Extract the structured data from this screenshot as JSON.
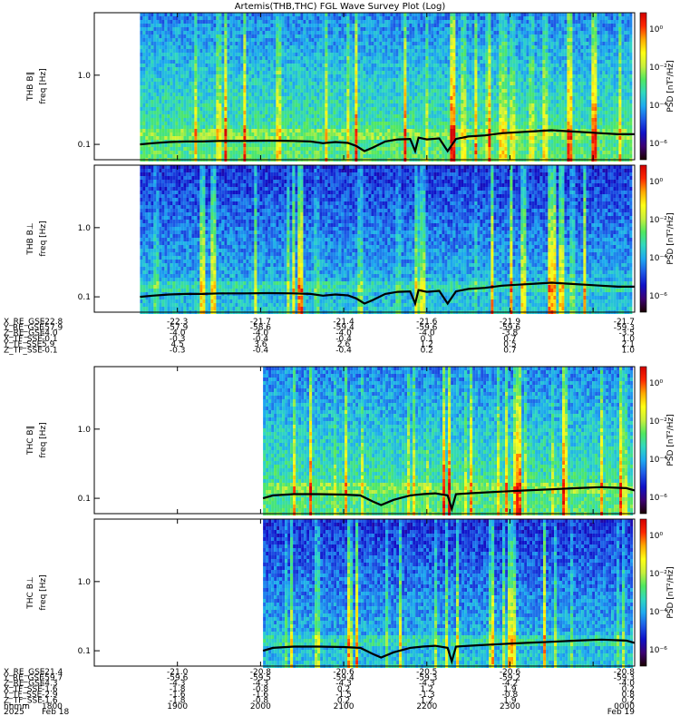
{
  "title": "Artemis(THB,THC) FGL Wave Survey Plot (Log)",
  "colors": {
    "background": "#ffffff",
    "trace": "#000000",
    "colorbar": [
      "#1a0000",
      "#3c0073",
      "#1010c8",
      "#1e5ae6",
      "#1eaaf0",
      "#30d8c0",
      "#50e860",
      "#c8f03c",
      "#ffff14",
      "#ffaa00",
      "#ff2800",
      "#d20000"
    ]
  },
  "chart_data": [
    {
      "type": "heatmap",
      "panel_id": "thb_b_par",
      "ylabel_probe": "THB B∥",
      "ylabel_unit": "freq [Hz]",
      "yscale": "log",
      "ylim": [
        0.06,
        8
      ],
      "yticks": [
        "1.0",
        "0.1"
      ],
      "data_start_hour": 17.55,
      "colorbar_label": "PSD [nT²/Hz]",
      "colorbar_ticks": [
        "10⁰",
        "10⁻²",
        "10⁻⁴",
        "10⁻⁶"
      ],
      "trace": [
        [
          17.55,
          0.1
        ],
        [
          17.7,
          0.104
        ],
        [
          17.9,
          0.108
        ],
        [
          18.1,
          0.11
        ],
        [
          18.3,
          0.11
        ],
        [
          18.5,
          0.112
        ],
        [
          18.8,
          0.112
        ],
        [
          19.1,
          0.113
        ],
        [
          19.4,
          0.112
        ],
        [
          19.6,
          0.11
        ],
        [
          19.75,
          0.104
        ],
        [
          19.9,
          0.108
        ],
        [
          20.05,
          0.105
        ],
        [
          20.15,
          0.095
        ],
        [
          20.25,
          0.08
        ],
        [
          20.35,
          0.09
        ],
        [
          20.5,
          0.11
        ],
        [
          20.65,
          0.118
        ],
        [
          20.8,
          0.12
        ],
        [
          20.86,
          0.08
        ],
        [
          20.9,
          0.125
        ],
        [
          21.0,
          0.118
        ],
        [
          21.15,
          0.122
        ],
        [
          21.25,
          0.08
        ],
        [
          21.35,
          0.12
        ],
        [
          21.5,
          0.13
        ],
        [
          21.7,
          0.135
        ],
        [
          21.9,
          0.145
        ],
        [
          22.1,
          0.15
        ],
        [
          22.3,
          0.155
        ],
        [
          22.5,
          0.16
        ],
        [
          22.7,
          0.155
        ],
        [
          22.9,
          0.15
        ],
        [
          23.1,
          0.145
        ],
        [
          23.3,
          0.14
        ],
        [
          23.5,
          0.14
        ]
      ]
    },
    {
      "type": "heatmap",
      "panel_id": "thb_b_perp",
      "ylabel_probe": "THB B⊥",
      "ylabel_unit": "freq [Hz]",
      "yscale": "log",
      "ylim": [
        0.06,
        8
      ],
      "yticks": [
        "1.0",
        "0.1"
      ],
      "data_start_hour": 17.55,
      "colorbar_label": "PSD [nT²/Hz]",
      "colorbar_ticks": [
        "10⁰",
        "10⁻²",
        "10⁻⁴",
        "10⁻⁶"
      ],
      "trace": [
        [
          17.55,
          0.1
        ],
        [
          17.7,
          0.104
        ],
        [
          17.9,
          0.108
        ],
        [
          18.1,
          0.11
        ],
        [
          18.3,
          0.11
        ],
        [
          18.5,
          0.112
        ],
        [
          18.8,
          0.112
        ],
        [
          19.1,
          0.113
        ],
        [
          19.4,
          0.112
        ],
        [
          19.6,
          0.11
        ],
        [
          19.75,
          0.104
        ],
        [
          19.9,
          0.108
        ],
        [
          20.05,
          0.105
        ],
        [
          20.15,
          0.095
        ],
        [
          20.25,
          0.08
        ],
        [
          20.35,
          0.09
        ],
        [
          20.5,
          0.11
        ],
        [
          20.65,
          0.118
        ],
        [
          20.8,
          0.12
        ],
        [
          20.86,
          0.08
        ],
        [
          20.9,
          0.125
        ],
        [
          21.0,
          0.118
        ],
        [
          21.15,
          0.122
        ],
        [
          21.25,
          0.08
        ],
        [
          21.35,
          0.12
        ],
        [
          21.5,
          0.13
        ],
        [
          21.7,
          0.135
        ],
        [
          21.9,
          0.145
        ],
        [
          22.1,
          0.15
        ],
        [
          22.3,
          0.155
        ],
        [
          22.5,
          0.16
        ],
        [
          22.7,
          0.155
        ],
        [
          22.9,
          0.15
        ],
        [
          23.1,
          0.145
        ],
        [
          23.3,
          0.14
        ],
        [
          23.5,
          0.14
        ]
      ]
    },
    {
      "type": "heatmap",
      "panel_id": "thc_b_par",
      "ylabel_probe": "THC B∥",
      "ylabel_unit": "freq [Hz]",
      "yscale": "log",
      "ylim": [
        0.06,
        8
      ],
      "yticks": [
        "1.0",
        "0.1"
      ],
      "data_start_hour": 19.03,
      "colorbar_label": "PSD [nT²/Hz]",
      "colorbar_ticks": [
        "10⁰",
        "10⁻²",
        "10⁻⁴",
        "10⁻⁶"
      ],
      "trace": [
        [
          19.03,
          0.1
        ],
        [
          19.15,
          0.11
        ],
        [
          19.4,
          0.115
        ],
        [
          19.7,
          0.115
        ],
        [
          20.0,
          0.113
        ],
        [
          20.2,
          0.11
        ],
        [
          20.35,
          0.09
        ],
        [
          20.45,
          0.08
        ],
        [
          20.6,
          0.095
        ],
        [
          20.8,
          0.11
        ],
        [
          20.95,
          0.115
        ],
        [
          21.1,
          0.118
        ],
        [
          21.25,
          0.11
        ],
        [
          21.3,
          0.07
        ],
        [
          21.35,
          0.115
        ],
        [
          21.6,
          0.12
        ],
        [
          21.9,
          0.125
        ],
        [
          22.2,
          0.13
        ],
        [
          22.5,
          0.135
        ],
        [
          22.8,
          0.14
        ],
        [
          23.1,
          0.145
        ],
        [
          23.4,
          0.14
        ],
        [
          23.5,
          0.13
        ]
      ]
    },
    {
      "type": "heatmap",
      "panel_id": "thc_b_perp",
      "ylabel_probe": "THC B⊥",
      "ylabel_unit": "freq [Hz]",
      "yscale": "log",
      "ylim": [
        0.06,
        8
      ],
      "yticks": [
        "1.0",
        "0.1"
      ],
      "data_start_hour": 19.03,
      "colorbar_label": "PSD [nT²/Hz]",
      "colorbar_ticks": [
        "10⁰",
        "10⁻²",
        "10⁻⁴",
        "10⁻⁶"
      ],
      "trace": [
        [
          19.03,
          0.1
        ],
        [
          19.15,
          0.11
        ],
        [
          19.4,
          0.115
        ],
        [
          19.7,
          0.115
        ],
        [
          20.0,
          0.113
        ],
        [
          20.2,
          0.11
        ],
        [
          20.35,
          0.09
        ],
        [
          20.45,
          0.08
        ],
        [
          20.6,
          0.095
        ],
        [
          20.8,
          0.11
        ],
        [
          20.95,
          0.115
        ],
        [
          21.1,
          0.118
        ],
        [
          21.25,
          0.11
        ],
        [
          21.3,
          0.07
        ],
        [
          21.35,
          0.115
        ],
        [
          21.6,
          0.12
        ],
        [
          21.9,
          0.125
        ],
        [
          22.2,
          0.13
        ],
        [
          22.5,
          0.135
        ],
        [
          22.8,
          0.14
        ],
        [
          23.1,
          0.145
        ],
        [
          23.4,
          0.14
        ],
        [
          23.5,
          0.13
        ]
      ]
    }
  ],
  "thb_ephemeris": {
    "row_labels": [
      "X_RE_GSE",
      "Y_RE_GSE",
      "Z_RE_GSE",
      "X_TF_SSE",
      "Y_TF_SSE",
      "Z_TF_SSE"
    ],
    "columns": [
      {
        "hour": 17.0,
        "values": [
          "-22.8",
          "-57.9",
          "-4.0",
          "-0.1",
          "5.9",
          "-0.1"
        ]
      },
      {
        "hour": 18.0,
        "values": [
          "-22.3",
          "-57.9",
          "-4.0",
          "-0.3",
          "4.5",
          "-0.3"
        ]
      },
      {
        "hour": 19.0,
        "values": [
          "-21.7",
          "-58.6",
          "-4.0",
          "-0.4",
          "3.6",
          "-0.4"
        ]
      },
      {
        "hour": 20.0,
        "values": [
          "-21.4",
          "-59.4",
          "-4.0",
          "-0.4",
          "2.6",
          "-0.4"
        ]
      },
      {
        "hour": 21.0,
        "values": [
          "-21.6",
          "-59.6",
          "-4.0",
          "0.1",
          "1.2",
          "0.2"
        ]
      },
      {
        "hour": 22.0,
        "values": [
          "-21.9",
          "-59.6",
          "-3.8",
          "0.7",
          "0.5",
          "0.7"
        ]
      },
      {
        "hour": 23.5,
        "values": [
          "-21.7",
          "-59.3",
          "-3.5",
          "1.0",
          "2.1",
          "1.0"
        ]
      }
    ]
  },
  "thc_ephemeris": {
    "row_labels": [
      "X_RE_GSE",
      "Y_RE_GSE",
      "Z_RE_GSE",
      "X_TF_SSE",
      "Y_TF_SSE",
      "Z_TF_SSE",
      "hhmm",
      "2025"
    ],
    "columns": [
      {
        "hour": 17.0,
        "values": [
          "-21.4",
          "-59.7",
          "-4.3",
          "-1.6",
          "-2.9",
          "-1.6",
          "1800",
          "Feb 18"
        ]
      },
      {
        "hour": 18.0,
        "values": [
          "-21.0",
          "-59.6",
          "-4.3",
          "-1.8",
          "-1.6",
          "-1.8",
          "1900",
          ""
        ]
      },
      {
        "hour": 19.0,
        "values": [
          "-20.8",
          "-59.5",
          "-4.3",
          "-0.8",
          "-1.6",
          "-0.8",
          "2000",
          ""
        ]
      },
      {
        "hour": 20.0,
        "values": [
          "-20.6",
          "-59.4",
          "-4.3",
          "0.2",
          "-1.5",
          "0.2",
          "2100",
          ""
        ]
      },
      {
        "hour": 21.0,
        "values": [
          "-20.5",
          "-59.3",
          "-4.3",
          "1.2",
          "-1.3",
          "1.2",
          "2200",
          ""
        ]
      },
      {
        "hour": 22.0,
        "values": [
          "-20.6",
          "-59.2",
          "-4.2",
          "1.9",
          "-0.8",
          "1.9",
          "2300",
          ""
        ]
      },
      {
        "hour": 23.5,
        "values": [
          "-20.8",
          "-59.3",
          "-4.0",
          "0.2",
          "0.8",
          "0.2",
          "0000",
          "Feb 19"
        ]
      }
    ]
  }
}
